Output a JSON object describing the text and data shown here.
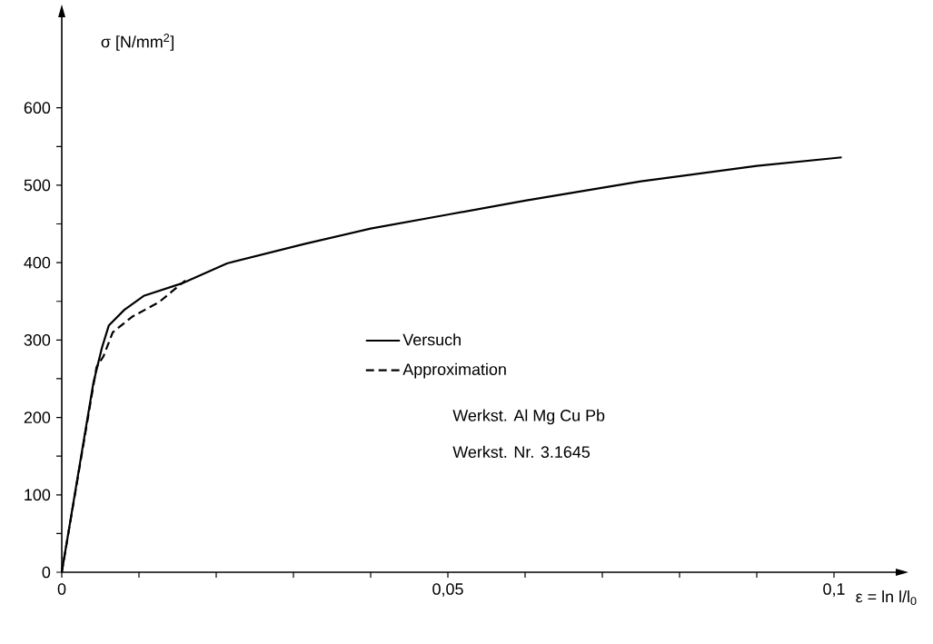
{
  "chart_data": {
    "type": "line",
    "xlabel": "ε = ln l/l$_{0}$",
    "ylabel": "σ [N/mm$^{2}$]",
    "xlim": [
      0,
      0.108
    ],
    "ylim": [
      0,
      717
    ],
    "xticks": [
      {
        "value": 0,
        "label": "0"
      },
      {
        "value": 0.01,
        "label": null
      },
      {
        "value": 0.02,
        "label": null
      },
      {
        "value": 0.03,
        "label": null
      },
      {
        "value": 0.04,
        "label": null
      },
      {
        "value": 0.05,
        "label": "0,05"
      },
      {
        "value": 0.06,
        "label": null
      },
      {
        "value": 0.07,
        "label": null
      },
      {
        "value": 0.08,
        "label": null
      },
      {
        "value": 0.09,
        "label": null
      },
      {
        "value": 0.1,
        "label": "0,1"
      }
    ],
    "yticks": [
      0,
      {
        "value": 50,
        "label": null
      },
      100,
      {
        "value": 150,
        "label": null
      },
      200,
      {
        "value": 250,
        "label": null
      },
      300,
      {
        "value": 350,
        "label": null
      },
      400,
      {
        "value": 450,
        "label": null
      },
      500,
      {
        "value": 550,
        "label": null
      },
      600
    ],
    "series": [
      {
        "name": "Versuch",
        "color": "#000000",
        "line_style": "solid",
        "x": [
          0,
          0.0041,
          0.0052,
          0.0061,
          0.0081,
          0.0106,
          0.0155,
          0.0214,
          0.0314,
          0.04,
          0.05,
          0.06,
          0.075,
          0.09,
          0.101
        ],
        "values": [
          0,
          245,
          290,
          319,
          339,
          357,
          373,
          399,
          424,
          444,
          462,
          480,
          505,
          525,
          536
        ]
      },
      {
        "name": "Approximation",
        "color": "#000000",
        "line_style": "dashed",
        "x": [
          0,
          0.0045,
          0.0054,
          0.0066,
          0.0091,
          0.0126,
          0.016
        ],
        "values": [
          0,
          265,
          279,
          310,
          330,
          349,
          377
        ]
      }
    ],
    "legend": "center",
    "annotations": [
      "Werkst. Al Mg Cu Pb",
      "Werkst. Nr. 3.1645"
    ]
  }
}
